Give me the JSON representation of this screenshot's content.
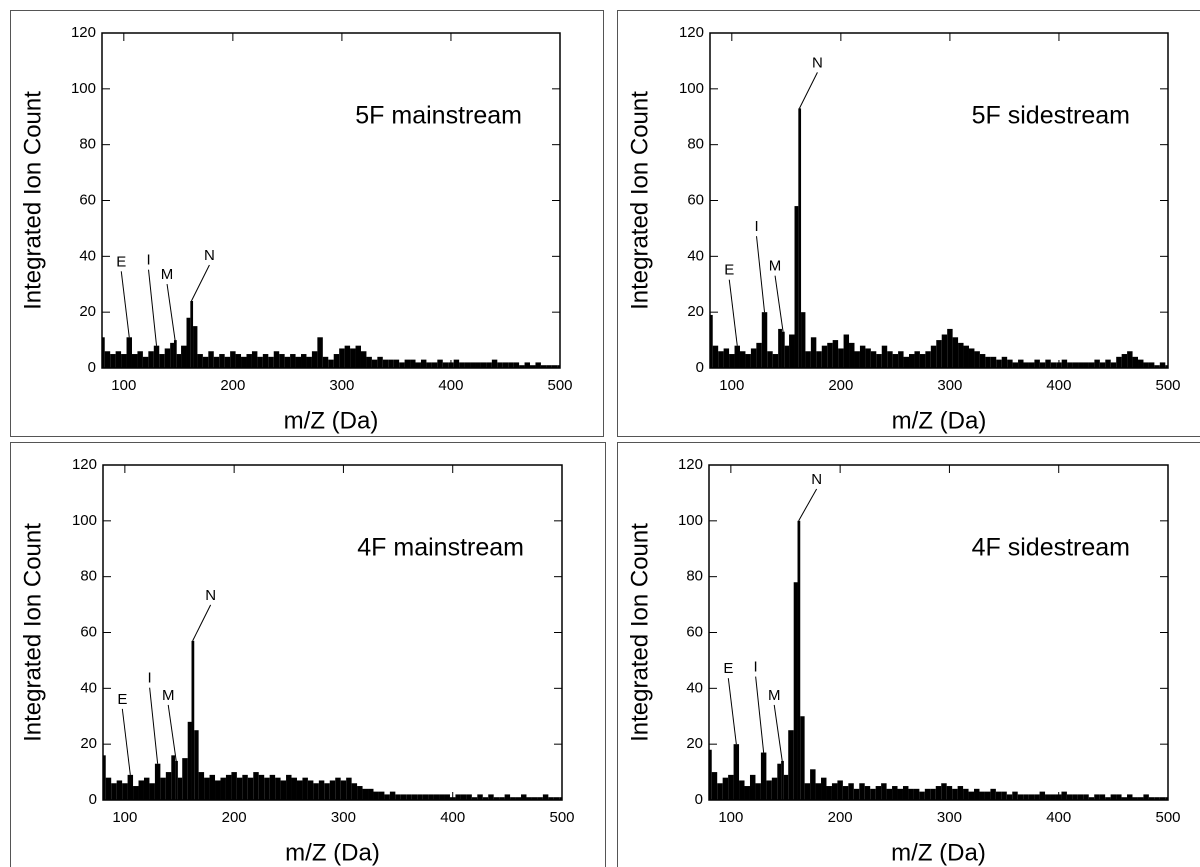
{
  "chart_data": [
    {
      "type": "bar",
      "title": "5F mainstream",
      "x_label": "m/Z (Da)",
      "y_label": "Integrated Ion Count",
      "xlim": [
        80,
        500
      ],
      "ylim": [
        0,
        120
      ],
      "xticks": [
        100,
        200,
        300,
        400,
        500
      ],
      "yticks": [
        0,
        20,
        40,
        60,
        80,
        100,
        120
      ],
      "color": "#000000",
      "x": [
        80,
        85,
        90,
        95,
        100,
        105,
        110,
        115,
        120,
        125,
        130,
        135,
        140,
        145,
        147,
        150,
        155,
        160,
        162,
        165,
        170,
        175,
        180,
        185,
        190,
        195,
        200,
        205,
        210,
        215,
        220,
        225,
        230,
        235,
        240,
        245,
        250,
        255,
        260,
        265,
        270,
        275,
        280,
        285,
        290,
        295,
        300,
        305,
        310,
        315,
        320,
        325,
        330,
        335,
        340,
        345,
        350,
        355,
        360,
        365,
        370,
        375,
        380,
        385,
        390,
        395,
        400,
        405,
        410,
        415,
        420,
        425,
        430,
        435,
        440,
        445,
        450,
        455,
        460,
        465,
        470,
        475,
        480,
        485,
        490,
        495,
        500
      ],
      "values": [
        11,
        6,
        5,
        6,
        5,
        11,
        5,
        6,
        4,
        6,
        8,
        5,
        7,
        9,
        10,
        5,
        8,
        18,
        24,
        15,
        5,
        4,
        6,
        4,
        5,
        4,
        6,
        5,
        4,
        5,
        6,
        4,
        5,
        4,
        6,
        5,
        4,
        5,
        4,
        5,
        4,
        6,
        11,
        4,
        3,
        5,
        7,
        8,
        7,
        8,
        6,
        4,
        3,
        4,
        3,
        3,
        3,
        2,
        3,
        3,
        2,
        3,
        2,
        2,
        3,
        2,
        2,
        3,
        2,
        2,
        2,
        2,
        2,
        2,
        3,
        2,
        2,
        2,
        2,
        1,
        2,
        1,
        2,
        1,
        1,
        1,
        1
      ],
      "annotations": [
        {
          "text": "E",
          "x": 105
        },
        {
          "text": "I",
          "x": 130
        },
        {
          "text": "M",
          "x": 147
        },
        {
          "text": "N",
          "x": 162
        }
      ]
    },
    {
      "type": "bar",
      "title": "5F sidestream",
      "x_label": "m/Z (Da)",
      "y_label": "Integrated Ion Count",
      "xlim": [
        80,
        500
      ],
      "ylim": [
        0,
        120
      ],
      "xticks": [
        100,
        200,
        300,
        400,
        500
      ],
      "yticks": [
        0,
        20,
        40,
        60,
        80,
        100,
        120
      ],
      "color": "#000000",
      "x": [
        80,
        85,
        90,
        95,
        100,
        105,
        110,
        115,
        120,
        125,
        130,
        135,
        140,
        145,
        147,
        150,
        155,
        160,
        162,
        165,
        170,
        175,
        180,
        185,
        190,
        195,
        200,
        205,
        210,
        215,
        220,
        225,
        230,
        235,
        240,
        245,
        250,
        255,
        260,
        265,
        270,
        275,
        280,
        285,
        290,
        295,
        300,
        305,
        310,
        315,
        320,
        325,
        330,
        335,
        340,
        345,
        350,
        355,
        360,
        365,
        370,
        375,
        380,
        385,
        390,
        395,
        400,
        405,
        410,
        415,
        420,
        425,
        430,
        435,
        440,
        445,
        450,
        455,
        460,
        465,
        470,
        475,
        480,
        485,
        490,
        495,
        500
      ],
      "values": [
        19,
        8,
        6,
        7,
        5,
        8,
        6,
        5,
        7,
        9,
        20,
        6,
        5,
        14,
        13,
        8,
        12,
        58,
        93,
        20,
        6,
        11,
        6,
        8,
        9,
        10,
        7,
        12,
        9,
        6,
        8,
        7,
        6,
        5,
        8,
        6,
        5,
        6,
        4,
        5,
        6,
        5,
        6,
        8,
        10,
        12,
        14,
        11,
        9,
        8,
        7,
        6,
        5,
        4,
        4,
        3,
        4,
        3,
        2,
        3,
        2,
        2,
        3,
        2,
        3,
        2,
        2,
        3,
        2,
        2,
        2,
        2,
        2,
        3,
        2,
        3,
        2,
        4,
        5,
        6,
        4,
        3,
        2,
        2,
        1,
        2,
        1
      ],
      "annotations": [
        {
          "text": "E",
          "x": 105
        },
        {
          "text": "I",
          "x": 130
        },
        {
          "text": "M",
          "x": 147
        },
        {
          "text": "N",
          "x": 162
        }
      ]
    },
    {
      "type": "bar",
      "title": "4F mainstream",
      "x_label": "m/Z (Da)",
      "y_label": "Integrated Ion Count",
      "xlim": [
        80,
        500
      ],
      "ylim": [
        0,
        120
      ],
      "xticks": [
        100,
        200,
        300,
        400,
        500
      ],
      "yticks": [
        0,
        20,
        40,
        60,
        80,
        100,
        120
      ],
      "color": "#000000",
      "x": [
        80,
        85,
        90,
        95,
        100,
        105,
        110,
        115,
        120,
        125,
        130,
        135,
        140,
        145,
        147,
        150,
        155,
        160,
        162,
        165,
        170,
        175,
        180,
        185,
        190,
        195,
        200,
        205,
        210,
        215,
        220,
        225,
        230,
        235,
        240,
        245,
        250,
        255,
        260,
        265,
        270,
        275,
        280,
        285,
        290,
        295,
        300,
        305,
        310,
        315,
        320,
        325,
        330,
        335,
        340,
        345,
        350,
        355,
        360,
        365,
        370,
        375,
        380,
        385,
        390,
        395,
        400,
        405,
        410,
        415,
        420,
        425,
        430,
        435,
        440,
        445,
        450,
        455,
        460,
        465,
        470,
        475,
        480,
        485,
        490,
        495,
        500
      ],
      "values": [
        16,
        8,
        6,
        7,
        6,
        9,
        5,
        7,
        8,
        6,
        13,
        8,
        10,
        16,
        14,
        8,
        15,
        28,
        57,
        25,
        10,
        8,
        9,
        7,
        8,
        9,
        10,
        8,
        9,
        8,
        10,
        9,
        8,
        9,
        8,
        7,
        9,
        8,
        7,
        8,
        7,
        6,
        7,
        6,
        7,
        8,
        7,
        8,
        6,
        5,
        4,
        4,
        3,
        3,
        2,
        3,
        2,
        2,
        2,
        2,
        2,
        2,
        2,
        2,
        2,
        2,
        1,
        2,
        2,
        2,
        1,
        2,
        1,
        2,
        1,
        1,
        2,
        1,
        1,
        2,
        1,
        1,
        1,
        2,
        1,
        1,
        1
      ],
      "annotations": [
        {
          "text": "E",
          "x": 105
        },
        {
          "text": "I",
          "x": 130
        },
        {
          "text": "M",
          "x": 147
        },
        {
          "text": "N",
          "x": 162
        }
      ]
    },
    {
      "type": "bar",
      "title": "4F sidestream",
      "x_label": "m/Z (Da)",
      "y_label": "Integrated Ion Count",
      "xlim": [
        80,
        500
      ],
      "ylim": [
        0,
        120
      ],
      "xticks": [
        100,
        200,
        300,
        400,
        500
      ],
      "yticks": [
        0,
        20,
        40,
        60,
        80,
        100,
        120
      ],
      "color": "#000000",
      "x": [
        80,
        85,
        90,
        95,
        100,
        105,
        110,
        115,
        120,
        125,
        130,
        135,
        140,
        145,
        147,
        150,
        155,
        160,
        162,
        165,
        170,
        175,
        180,
        185,
        190,
        195,
        200,
        205,
        210,
        215,
        220,
        225,
        230,
        235,
        240,
        245,
        250,
        255,
        260,
        265,
        270,
        275,
        280,
        285,
        290,
        295,
        300,
        305,
        310,
        315,
        320,
        325,
        330,
        335,
        340,
        345,
        350,
        355,
        360,
        365,
        370,
        375,
        380,
        385,
        390,
        395,
        400,
        405,
        410,
        415,
        420,
        425,
        430,
        435,
        440,
        445,
        450,
        455,
        460,
        465,
        470,
        475,
        480,
        485,
        490,
        495,
        500
      ],
      "values": [
        18,
        10,
        6,
        8,
        9,
        20,
        7,
        5,
        9,
        6,
        17,
        7,
        8,
        13,
        14,
        9,
        25,
        78,
        100,
        30,
        6,
        11,
        6,
        8,
        5,
        6,
        7,
        5,
        6,
        4,
        6,
        5,
        4,
        5,
        6,
        4,
        5,
        4,
        5,
        4,
        4,
        3,
        4,
        4,
        5,
        6,
        5,
        4,
        5,
        4,
        3,
        4,
        3,
        3,
        4,
        3,
        3,
        2,
        3,
        2,
        2,
        2,
        2,
        3,
        2,
        2,
        2,
        3,
        2,
        2,
        2,
        2,
        1,
        2,
        2,
        1,
        2,
        2,
        1,
        2,
        1,
        1,
        2,
        1,
        1,
        1,
        1
      ],
      "annotations": [
        {
          "text": "E",
          "x": 105
        },
        {
          "text": "I",
          "x": 130
        },
        {
          "text": "M",
          "x": 147
        },
        {
          "text": "N",
          "x": 162
        }
      ]
    }
  ]
}
